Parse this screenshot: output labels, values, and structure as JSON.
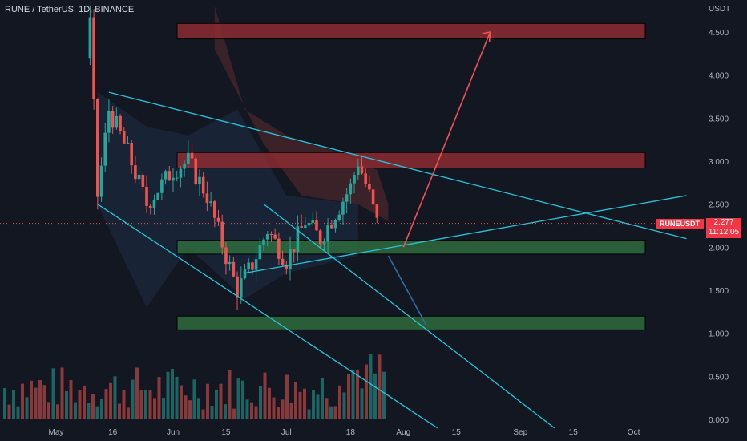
{
  "header": {
    "symbol_line": "RUNE / TetherUS, 1D, BINANCE"
  },
  "price_axis": {
    "label": "USDT"
  },
  "last_price": {
    "symbol": "RUNEUSDT",
    "value": "2.277",
    "countdown": "11:12:05"
  },
  "colors": {
    "background": "#131722",
    "up": "#26a69a",
    "down": "#ef5350",
    "trendline": "#26c6da",
    "resistance_zone": "#8c2b33",
    "support_zone": "#2e6b3c",
    "cloud_red": "#5c2a2d",
    "arrow_up": "#f05454",
    "arrow_down": "#2a6fa3"
  },
  "chart_data": {
    "type": "candlestick",
    "title": "RUNE / TetherUS, 1D, BINANCE",
    "y_unit": "USDT",
    "y_ticks": [
      "0.000",
      "0.500",
      "1.000",
      "1.500",
      "2.000",
      "2.500",
      "3.000",
      "3.500",
      "4.000",
      "4.500"
    ],
    "x_ticks": [
      "May",
      "16",
      "Jun",
      "15",
      "Jul",
      "18",
      "Aug",
      "15",
      "Sep",
      "15",
      "Oct"
    ],
    "last_close": 2.277,
    "zones": [
      {
        "kind": "resistance",
        "from": 4.42,
        "to": 4.6
      },
      {
        "kind": "resistance",
        "from": 2.92,
        "to": 3.1
      },
      {
        "kind": "support",
        "from": 1.92,
        "to": 2.08
      },
      {
        "kind": "support",
        "from": 1.04,
        "to": 1.2
      }
    ],
    "ohlc_approx": [
      {
        "t": "2022-05-10",
        "close": 4.6
      },
      {
        "t": "2022-05-12",
        "close": 2.6
      },
      {
        "t": "2022-05-15",
        "close": 3.6
      },
      {
        "t": "2022-05-20",
        "close": 3.1
      },
      {
        "t": "2022-05-25",
        "close": 2.5
      },
      {
        "t": "2022-06-01",
        "close": 2.9
      },
      {
        "t": "2022-06-05",
        "close": 3.0
      },
      {
        "t": "2022-06-10",
        "close": 2.6
      },
      {
        "t": "2022-06-15",
        "close": 1.9
      },
      {
        "t": "2022-06-18",
        "close": 1.5
      },
      {
        "t": "2022-06-22",
        "close": 1.8
      },
      {
        "t": "2022-06-26",
        "close": 2.2
      },
      {
        "t": "2022-07-01",
        "close": 1.85
      },
      {
        "t": "2022-07-06",
        "close": 2.3
      },
      {
        "t": "2022-07-10",
        "close": 2.1
      },
      {
        "t": "2022-07-14",
        "close": 2.4
      },
      {
        "t": "2022-07-18",
        "close": 2.7
      },
      {
        "t": "2022-07-20",
        "close": 3.0
      },
      {
        "t": "2022-07-23",
        "close": 2.6
      },
      {
        "t": "2022-07-25",
        "close": 2.277
      }
    ],
    "volume_y_ticks": [
      "0.000",
      "0.500"
    ],
    "grid": false
  }
}
